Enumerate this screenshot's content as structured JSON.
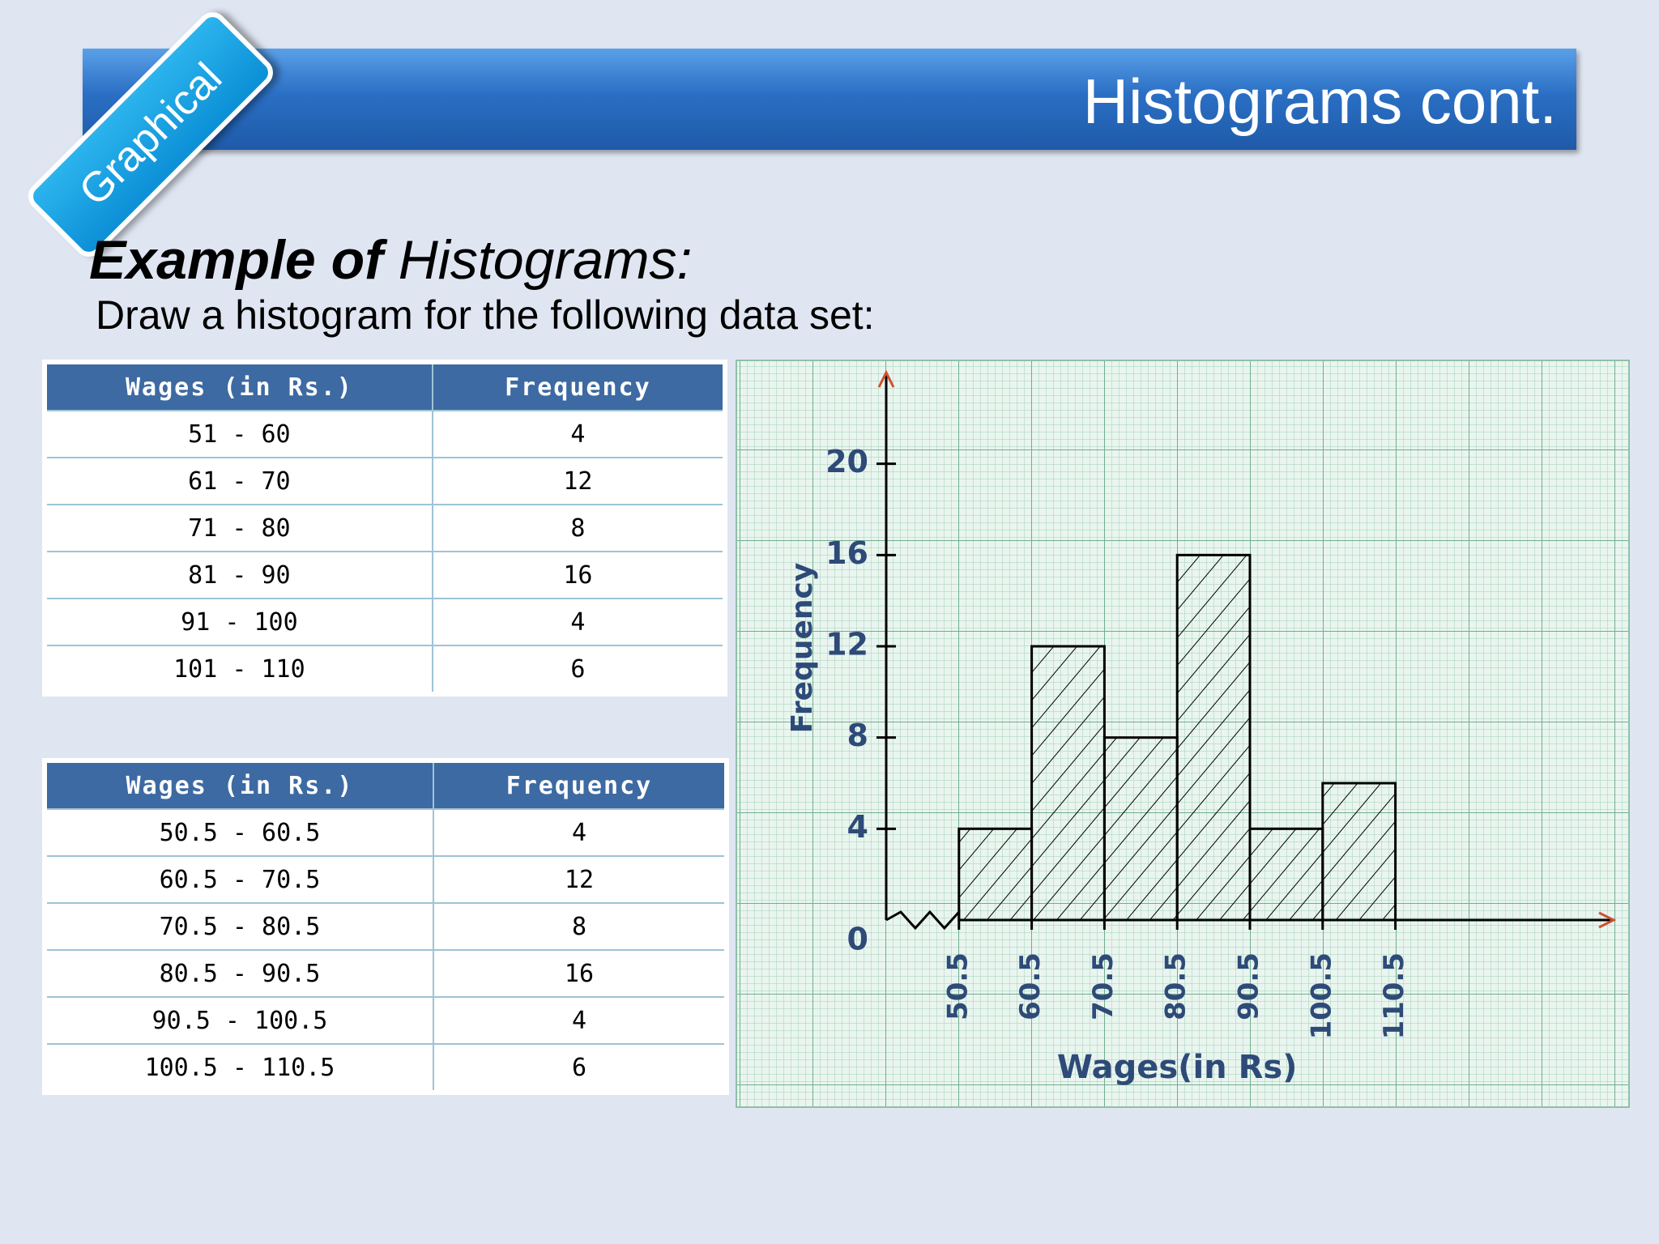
{
  "header": {
    "title": "Histograms cont.",
    "badge": "Graphical"
  },
  "heading": {
    "bold": "Example of",
    "italic": "Histograms:"
  },
  "subtitle": "Draw a histogram for the following data set:",
  "tables": [
    {
      "headers": [
        "Wages (in Rs.)",
        "Frequency"
      ],
      "rows": [
        [
          "51 - 60",
          "4"
        ],
        [
          "61 - 70",
          "12"
        ],
        [
          "71 - 80",
          "8"
        ],
        [
          "81 - 90",
          "16"
        ],
        [
          "91 - 100",
          "4"
        ],
        [
          "101 - 110",
          "6"
        ]
      ]
    },
    {
      "headers": [
        "Wages (in Rs.)",
        "Frequency"
      ],
      "rows": [
        [
          "50.5 - 60.5",
          "4"
        ],
        [
          "60.5 - 70.5",
          "12"
        ],
        [
          "70.5 - 80.5",
          "8"
        ],
        [
          "80.5 - 90.5",
          "16"
        ],
        [
          "90.5 - 100.5",
          "4"
        ],
        [
          "100.5 - 110.5",
          "6"
        ]
      ]
    }
  ],
  "chart_data": {
    "type": "histogram",
    "bins": [
      50.5,
      60.5,
      70.5,
      80.5,
      90.5,
      100.5,
      110.5
    ],
    "counts": [
      4,
      12,
      8,
      16,
      4,
      6
    ],
    "xlim": [
      40.5,
      140.5
    ],
    "xticks": [
      50.5,
      60.5,
      70.5,
      80.5,
      90.5,
      100.5,
      110.5
    ],
    "ylim": [
      0,
      24
    ],
    "yticks": [
      0,
      4,
      8,
      12,
      16,
      20
    ],
    "x_label": "Wages(in Rs)",
    "y_label": "Frequency",
    "color": "#ffffff",
    "edge_color": "#000000",
    "hatch": true
  }
}
